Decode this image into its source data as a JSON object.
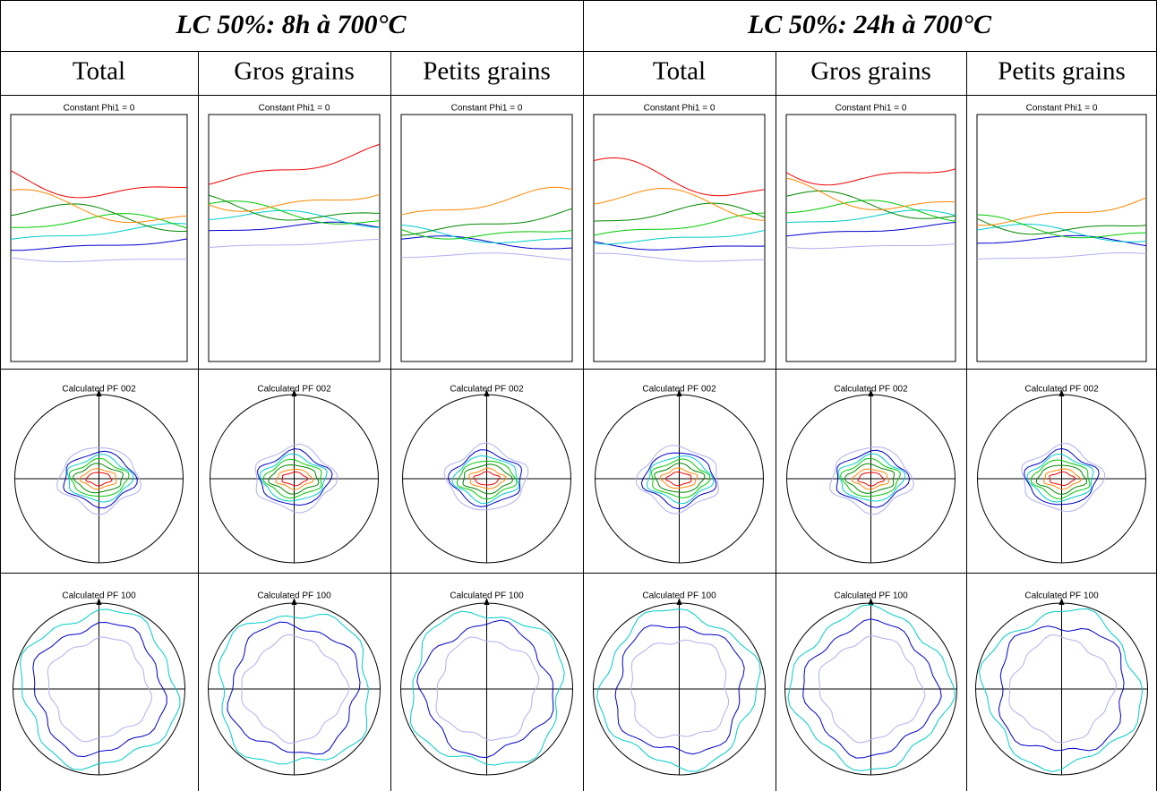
{
  "groups": [
    "LC 50%: 8h à 700°C",
    "LC 50%: 24h à 700°C"
  ],
  "columns": [
    "Total",
    "Gros grains",
    "Petits grains",
    "Total",
    "Gros grains",
    "Petits grains"
  ],
  "rows": [
    [
      "Constant Phi1 = 0",
      "Constant Phi1 = 0",
      "Constant Phi1 = 0",
      "Constant Phi1 = 0",
      "Constant Phi1 = 0",
      "Constant Phi1 = 0"
    ],
    [
      "Calculated PF 002",
      "Calculated PF 002",
      "Calculated PF 002",
      "Calculated PF 002",
      "Calculated PF 002",
      "Calculated PF 002"
    ],
    [
      "Calculated PF 100",
      "Calculated PF 100",
      "Calculated PF 100",
      "Calculated PF 100",
      "Calculated PF 100",
      "Calculated PF 100"
    ]
  ]
}
